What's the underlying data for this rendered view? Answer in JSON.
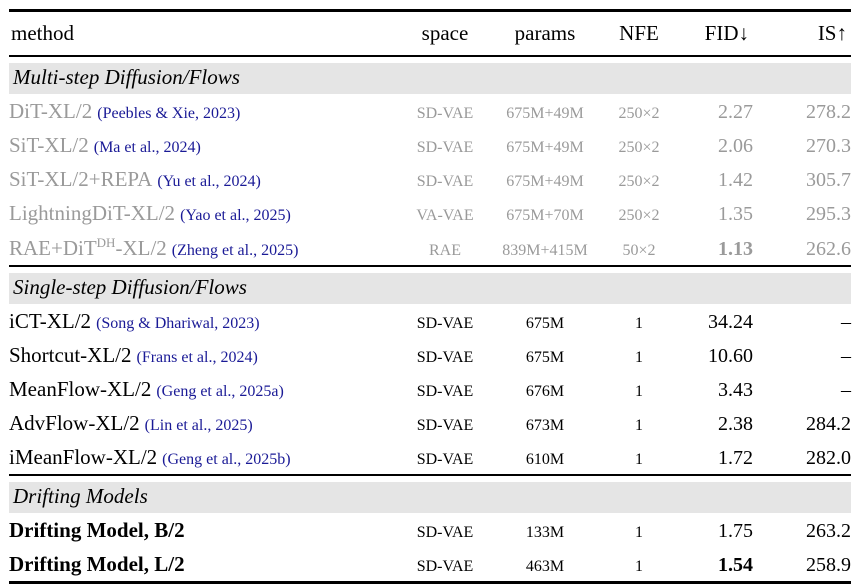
{
  "colors": {
    "citation_link": "#1a1a96",
    "muted_text": "#9a9a9a",
    "section_band_background": "#e5e5e5",
    "text": "#000000"
  },
  "header": {
    "columns": {
      "method": "method",
      "space": "space",
      "params": "params",
      "nfe": "NFE",
      "fid": "FID↓",
      "is": "IS↑"
    }
  },
  "sections": [
    {
      "title": "Multi-step Diffusion/Flows",
      "muted": true,
      "rows": [
        {
          "method": "DiT-XL/2",
          "sup": "",
          "method_suffix": "",
          "cite": "(Peebles & Xie, 2023)",
          "space": "SD-VAE",
          "params": "675M+49M",
          "nfe": "250×2",
          "fid": "2.27",
          "is": "278.2",
          "fid_bold": false,
          "method_bold": false
        },
        {
          "method": "SiT-XL/2",
          "sup": "",
          "method_suffix": "",
          "cite": "(Ma et al., 2024)",
          "space": "SD-VAE",
          "params": "675M+49M",
          "nfe": "250×2",
          "fid": "2.06",
          "is": "270.3",
          "fid_bold": false,
          "method_bold": false
        },
        {
          "method": "SiT-XL/2+REPA",
          "sup": "",
          "method_suffix": "",
          "cite": "(Yu et al., 2024)",
          "space": "SD-VAE",
          "params": "675M+49M",
          "nfe": "250×2",
          "fid": "1.42",
          "is": "305.7",
          "fid_bold": false,
          "method_bold": false
        },
        {
          "method": "LightningDiT-XL/2",
          "sup": "",
          "method_suffix": "",
          "cite": "(Yao et al., 2025)",
          "space": "VA-VAE",
          "params": "675M+70M",
          "nfe": "250×2",
          "fid": "1.35",
          "is": "295.3",
          "fid_bold": false,
          "method_bold": false
        },
        {
          "method": "RAE+DiT",
          "sup": "DH",
          "method_suffix": "-XL/2",
          "cite": "(Zheng et al., 2025)",
          "space": "RAE",
          "params": "839M+415M",
          "nfe": "50×2",
          "fid": "1.13",
          "is": "262.6",
          "fid_bold": true,
          "method_bold": false
        }
      ]
    },
    {
      "title": "Single-step Diffusion/Flows",
      "muted": false,
      "rows": [
        {
          "method": "iCT-XL/2",
          "sup": "",
          "method_suffix": "",
          "cite": "(Song & Dhariwal, 2023)",
          "space": "SD-VAE",
          "params": "675M",
          "nfe": "1",
          "fid": "34.24",
          "is": "–",
          "fid_bold": false,
          "method_bold": false
        },
        {
          "method": "Shortcut-XL/2",
          "sup": "",
          "method_suffix": "",
          "cite": "(Frans et al., 2024)",
          "space": "SD-VAE",
          "params": "675M",
          "nfe": "1",
          "fid": "10.60",
          "is": "–",
          "fid_bold": false,
          "method_bold": false
        },
        {
          "method": "MeanFlow-XL/2",
          "sup": "",
          "method_suffix": "",
          "cite": "(Geng et al., 2025a)",
          "space": "SD-VAE",
          "params": "676M",
          "nfe": "1",
          "fid": "3.43",
          "is": "–",
          "fid_bold": false,
          "method_bold": false
        },
        {
          "method": "AdvFlow-XL/2",
          "sup": "",
          "method_suffix": "",
          "cite": "(Lin et al., 2025)",
          "space": "SD-VAE",
          "params": "673M",
          "nfe": "1",
          "fid": "2.38",
          "is": "284.2",
          "fid_bold": false,
          "method_bold": false
        },
        {
          "method": "iMeanFlow-XL/2",
          "sup": "",
          "method_suffix": "",
          "cite": "(Geng et al., 2025b)",
          "space": "SD-VAE",
          "params": "610M",
          "nfe": "1",
          "fid": "1.72",
          "is": "282.0",
          "fid_bold": false,
          "method_bold": false
        }
      ]
    },
    {
      "title": "Drifting Models",
      "muted": false,
      "rows": [
        {
          "method": "Drifting Model, B/2",
          "sup": "",
          "method_suffix": "",
          "cite": "",
          "space": "SD-VAE",
          "params": "133M",
          "nfe": "1",
          "fid": "1.75",
          "is": "263.2",
          "fid_bold": false,
          "method_bold": true
        },
        {
          "method": "Drifting Model, L/2",
          "sup": "",
          "method_suffix": "",
          "cite": "",
          "space": "SD-VAE",
          "params": "463M",
          "nfe": "1",
          "fid": "1.54",
          "is": "258.9",
          "fid_bold": true,
          "method_bold": true
        }
      ]
    }
  ]
}
